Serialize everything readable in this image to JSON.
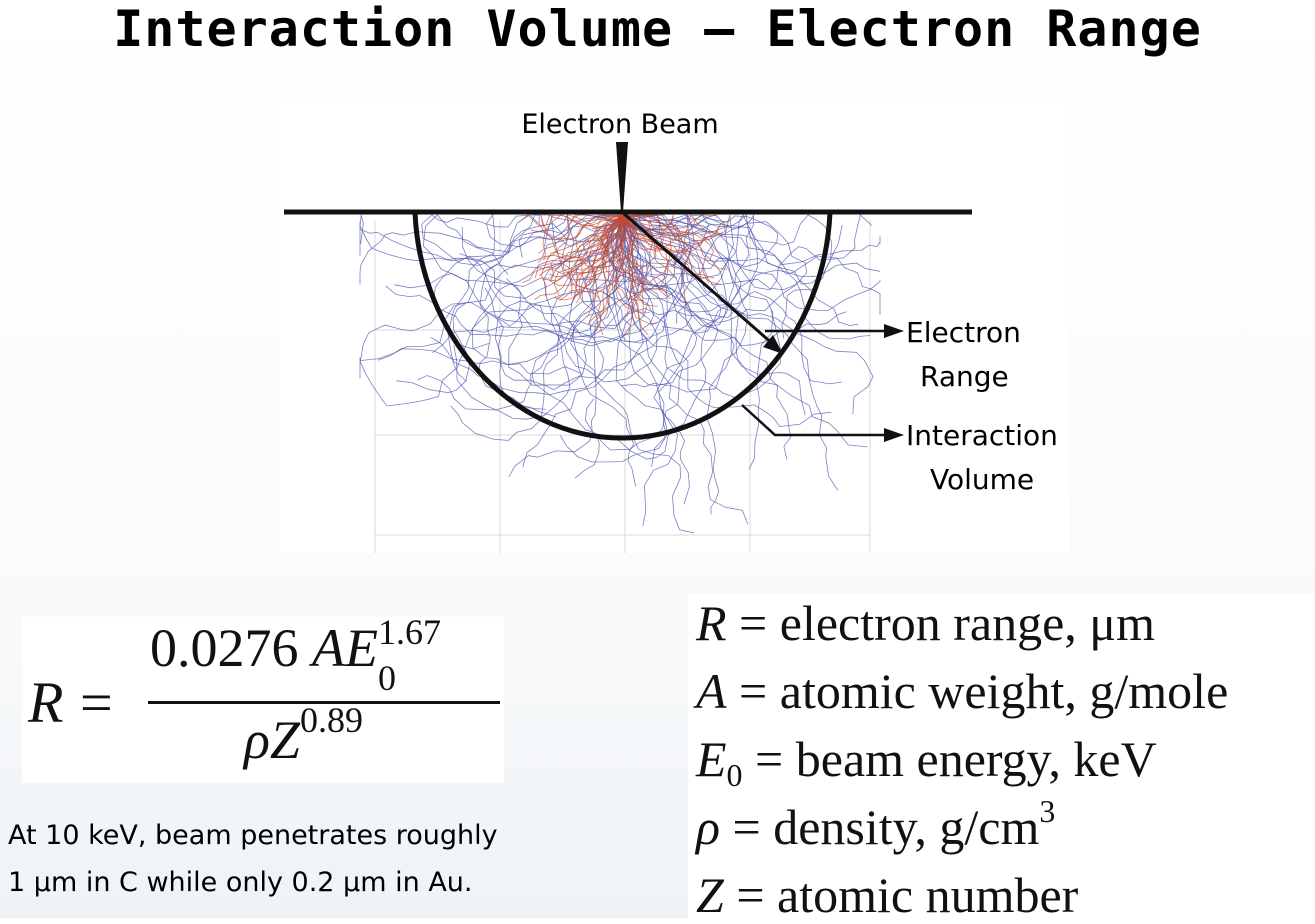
{
  "title": "Interaction Volume  –  Electron Range",
  "diagram": {
    "beam_label": "Electron Beam",
    "range_label_1": "Electron",
    "range_label_2": "Range",
    "volume_label_1": "Interaction",
    "volume_label_2": "Volume",
    "colors": {
      "near_surface_tracks": "#c8492c",
      "deep_tracks": "#4f55b0",
      "outline": "#111111"
    }
  },
  "equation": {
    "lhs": "R",
    "equals": "=",
    "coefficient": "0.0276",
    "var_a": "A",
    "var_e": "E",
    "e_sub": "0",
    "e_sup": "1.67",
    "rho": "ρ",
    "var_z": "Z",
    "z_sup": "0.89"
  },
  "note": {
    "line1": "At 10 keV, beam penetrates roughly",
    "line2": "1 μm in C while only 0.2 μm in Au."
  },
  "definitions": [
    {
      "symbol": "R",
      "sub": "",
      "text": "= electron range, μm",
      "sup": ""
    },
    {
      "symbol": "A",
      "sub": "",
      "text": "= atomic weight, g/mole",
      "sup": ""
    },
    {
      "symbol": "E",
      "sub": "0",
      "text": "= beam energy, keV",
      "sup": ""
    },
    {
      "symbol": "ρ",
      "sub": "",
      "text": "= density, g/cm",
      "sup": "3"
    },
    {
      "symbol": "Z",
      "sub": "",
      "text": "= atomic number",
      "sup": ""
    }
  ]
}
